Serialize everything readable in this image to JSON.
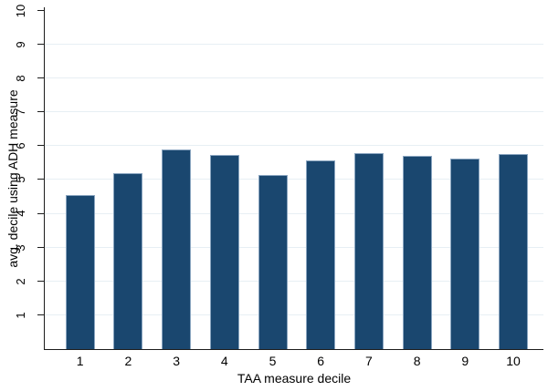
{
  "chart_data": {
    "type": "bar",
    "title": "",
    "xlabel": "TAA measure decile",
    "ylabel": "avg. decile using ADH measure",
    "categories": [
      "1",
      "2",
      "3",
      "4",
      "5",
      "6",
      "7",
      "8",
      "9",
      "10"
    ],
    "values": [
      4.55,
      5.2,
      5.9,
      5.75,
      5.15,
      5.57,
      5.79,
      5.72,
      5.64,
      5.76
    ],
    "ylim": [
      0,
      10.1
    ],
    "yticks": [
      1,
      2,
      3,
      4,
      5,
      6,
      7,
      8,
      9,
      10
    ],
    "gridlines_at": [
      1,
      2,
      3,
      4,
      5,
      6,
      7,
      8,
      9
    ],
    "grid_on": true,
    "legend": "none",
    "bar_color": "#1a476f",
    "bar_outline_color": "#8aa5c0",
    "grid_color": "#e7eff4",
    "axis_color": "#1c1c1c",
    "background_color": "#ffffff"
  }
}
